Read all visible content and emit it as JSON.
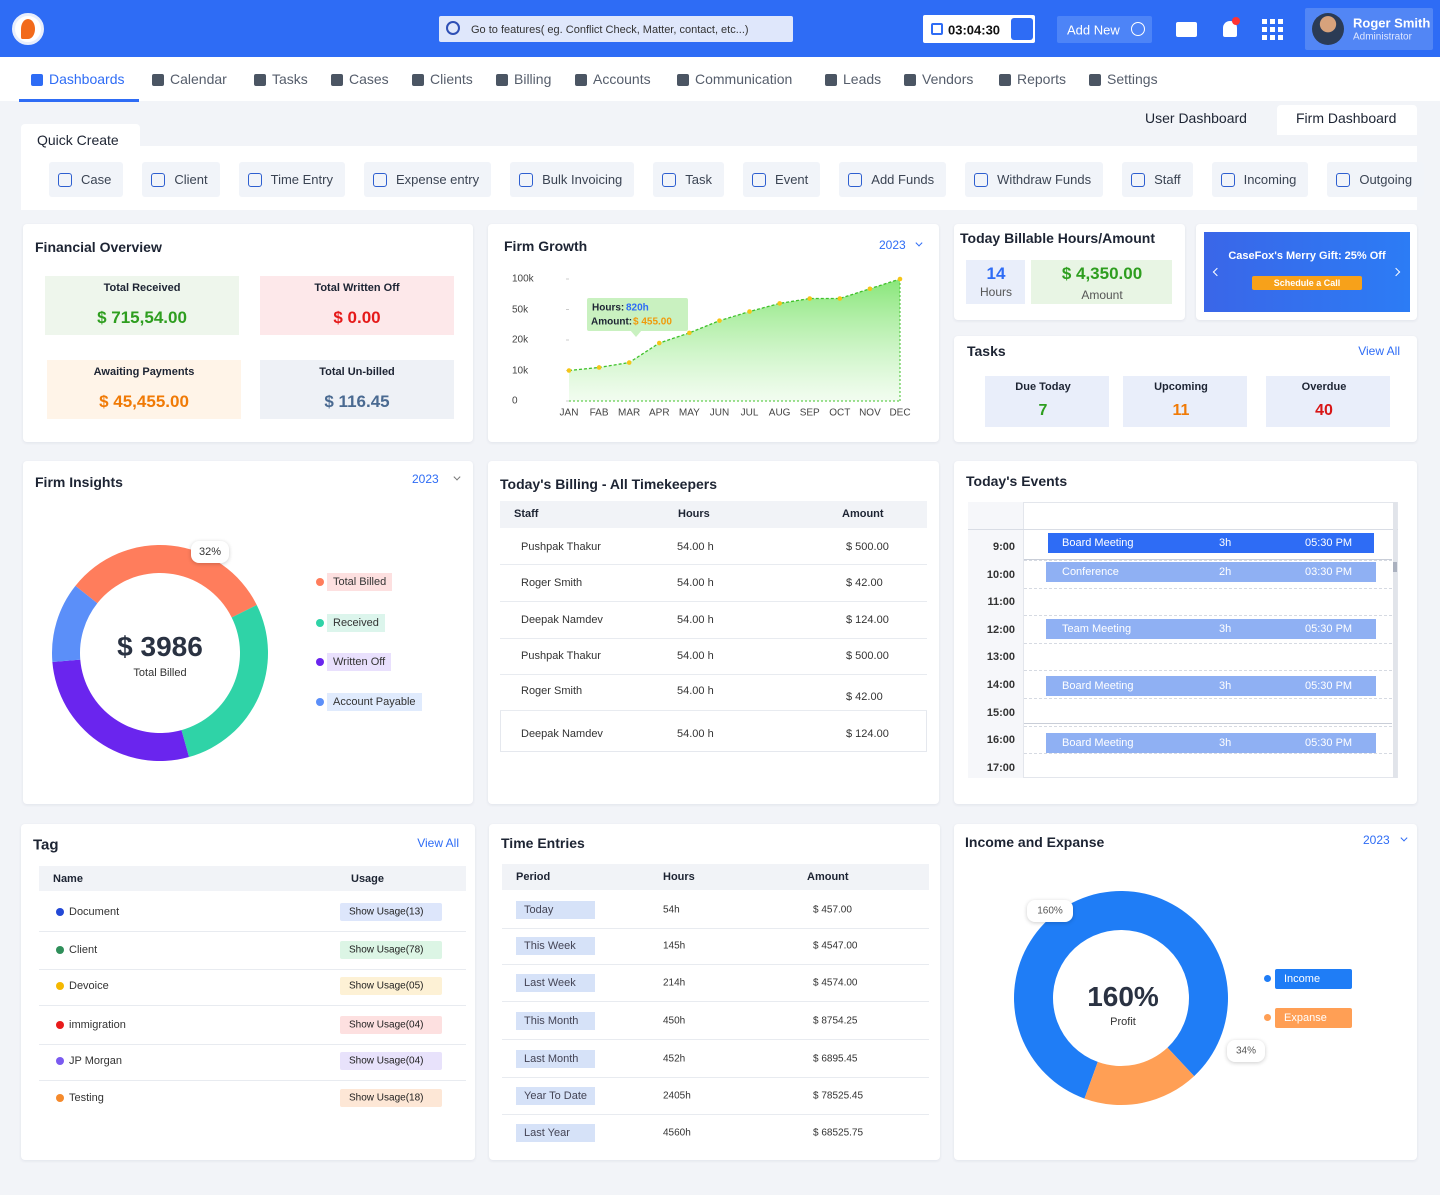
{
  "header": {
    "search_placeholder": "Go to features( eg. Conflict Check, Matter, contact, etc...)",
    "timer": "03:04:30",
    "add_new": "Add New",
    "user_name": "Roger Smith",
    "user_role": "Administrator"
  },
  "nav": {
    "items": [
      "Dashboards",
      "Calendar",
      "Tasks",
      "Cases",
      "Clients",
      "Billing",
      "Accounts",
      "Communication",
      "Leads",
      "Vendors",
      "Reports",
      "Settings"
    ]
  },
  "dashboard_tabs": [
    "User Dashboard",
    "Firm Dashboard"
  ],
  "quick_create": {
    "title": "Quick Create",
    "items": [
      "Case",
      "Client",
      "Time Entry",
      "Expense entry",
      "Bulk Invoicing",
      "Task",
      "Event",
      "Add Funds",
      "Withdraw Funds",
      "Staff",
      "Incoming",
      "Outgoing"
    ]
  },
  "financial_overview": {
    "title": "Financial Overview",
    "cards": [
      {
        "label": "Total Received",
        "value": "$ 715,54.00"
      },
      {
        "label": "Total Written Off",
        "value": "$ 0.00"
      },
      {
        "label": "Awaiting Payments",
        "value": "$ 45,455.00"
      },
      {
        "label": "Total Un-billed",
        "value": "$ 116.45"
      }
    ]
  },
  "firm_growth": {
    "title": "Firm Growth",
    "year": "2023",
    "chart": {
      "type": "line",
      "categories": [
        "JAN",
        "FAB",
        "MAR",
        "APR",
        "MAY",
        "JUN",
        "JUL",
        "AUG",
        "SEP",
        "OCT",
        "NOV",
        "DEC"
      ],
      "values": [
        10000,
        11000,
        12600,
        19000,
        27000,
        39000,
        48000,
        60000,
        68000,
        68000,
        84000,
        100000
      ],
      "color": "#3fc12a",
      "ylim": [
        0,
        100000
      ],
      "yticks": [
        0,
        {
          "value": 10000,
          "label": "10k"
        },
        {
          "value": 20000,
          "label": "20k"
        },
        {
          "value": 50000,
          "label": "50k"
        },
        {
          "value": 100000,
          "label": "100k"
        }
      ]
    },
    "tooltip": {
      "hours_label": "Hours:",
      "hours": "820h",
      "amount_label": "Amount:",
      "amount": "$ 455.00"
    }
  },
  "billable": {
    "title": "Today Billable Hours/Amount",
    "hours": 14,
    "hours_label": "Hours",
    "amount": "$ 4,350.00",
    "amount_label": "Amount"
  },
  "promo": {
    "text": "CaseFox's Merry Gift: 25% Off",
    "button": "Schedule a Call"
  },
  "tasks": {
    "title": "Tasks",
    "view_all": "View All",
    "items": [
      {
        "label": "Due Today",
        "value": 7
      },
      {
        "label": "Upcoming",
        "value": 11
      },
      {
        "label": "Overdue",
        "value": 40
      }
    ]
  },
  "firm_insights": {
    "title": "Firm Insights",
    "year": "2023",
    "chart": {
      "type": "donut",
      "categories": [
        "Total Billed",
        "Received",
        "Written Off",
        "Account Payable"
      ],
      "values": [
        32,
        28,
        28,
        12
      ],
      "value_labels": [
        "32%",
        null,
        null,
        null
      ],
      "colors": [
        "#ff7d5c",
        "#2fd3a7",
        "#6a25ee",
        "#5b8ff9"
      ],
      "center_value": "$ 3986",
      "center_label": "Total Billed"
    }
  },
  "billing": {
    "title": "Today's Billing - All Timekeepers",
    "columns": [
      "Staff",
      "Hours",
      "Amount"
    ],
    "rows": [
      [
        "Pushpak Thakur",
        "54.00 h",
        "$ 500.00"
      ],
      [
        "Roger Smith",
        "54.00 h",
        "$ 42.00"
      ],
      [
        "Deepak Namdev",
        "54.00 h",
        "$ 124.00"
      ],
      [
        "Pushpak Thakur",
        "54.00 h",
        "$ 500.00"
      ],
      [
        "Roger Smith",
        "54.00 h",
        "$ 42.00"
      ],
      [
        "Deepak Namdev",
        "54.00 h",
        "$ 124.00"
      ]
    ]
  },
  "events": {
    "title": "Today's Events",
    "times": [
      "9:00",
      "10:00",
      "11:00",
      "12:00",
      "13:00",
      "14:00",
      "15:00",
      "16:00",
      "17:00"
    ],
    "items": [
      {
        "name": "Board Meeting",
        "duration": "3h",
        "time": "05:30 PM"
      },
      {
        "name": "Conference",
        "duration": "2h",
        "time": "03:30 PM"
      },
      {
        "name": "Team Meeting",
        "duration": "3h",
        "time": "05:30 PM"
      },
      {
        "name": "Board Meeting",
        "duration": "3h",
        "time": "05:30 PM"
      },
      {
        "name": "Board Meeting",
        "duration": "3h",
        "time": "05:30 PM"
      }
    ]
  },
  "tag": {
    "title": "Tag",
    "view_all": "View All",
    "columns": [
      "Name",
      "Usage"
    ],
    "rows": [
      {
        "name": "Document",
        "usage": "Show Usage(13)"
      },
      {
        "name": "Client",
        "usage": "Show Usage(78)"
      },
      {
        "name": "Devoice",
        "usage": "Show Usage(05)"
      },
      {
        "name": "immigration",
        "usage": "Show Usage(04)"
      },
      {
        "name": "JP Morgan",
        "usage": "Show Usage(04)"
      },
      {
        "name": "Testing",
        "usage": "Show Usage(18)"
      }
    ]
  },
  "time_entries": {
    "title": "Time Entries",
    "columns": [
      "Period",
      "Hours",
      "Amount"
    ],
    "rows": [
      [
        "Today",
        "54h",
        "$ 457.00"
      ],
      [
        "This Week",
        "145h",
        "$ 4547.00"
      ],
      [
        "Last Week",
        "214h",
        "$ 4574.00"
      ],
      [
        "This Month",
        "450h",
        "$ 8754.25"
      ],
      [
        "Last Month",
        "452h",
        "$ 6895.45"
      ],
      [
        "Year To Date",
        "2405h",
        "$ 78525.45"
      ],
      [
        "Last Year",
        "4560h",
        "$ 68525.75"
      ]
    ]
  },
  "income": {
    "title": "Income and Expanse",
    "year": "2023",
    "chart": {
      "type": "donut",
      "categories": [
        "Income",
        "Expanse"
      ],
      "values": [
        160,
        34
      ],
      "value_labels": [
        "160%",
        "34%"
      ],
      "colors": [
        "#1f7df6",
        "#ff9f55"
      ],
      "center_label": "Profit"
    }
  }
}
